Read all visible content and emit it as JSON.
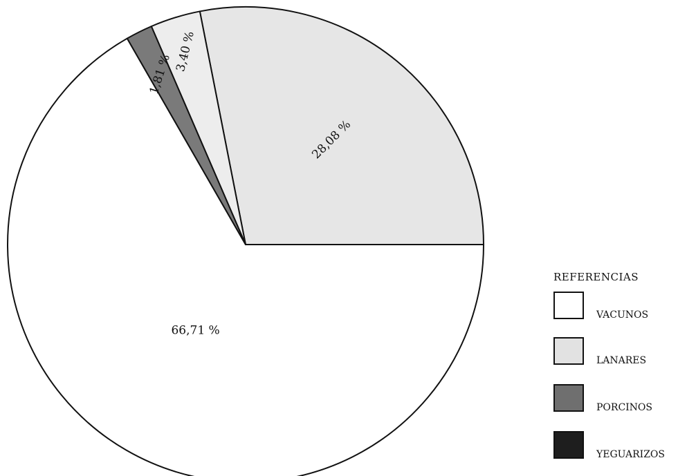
{
  "chart_data": {
    "type": "pie",
    "title": "",
    "categories": [
      "VACUNOS",
      "LANARES",
      "PORCINOS",
      "YEGUARIZOS"
    ],
    "values": [
      66.71,
      28.08,
      1.81,
      3.4
    ],
    "slices": [
      {
        "name": "VACUNOS",
        "value": 66.71,
        "label": "66,71 %",
        "color": "#ffffff"
      },
      {
        "name": "LANARES",
        "value": 28.08,
        "label": "28,08 %",
        "color": "#e6e6e6"
      },
      {
        "name": "YEGUARIZOS",
        "value": 3.4,
        "label": "3,40 %",
        "color": "#ededed"
      },
      {
        "name": "PORCINOS",
        "value": 1.81,
        "label": "1,81 %",
        "color": "#7a7a7a"
      }
    ],
    "legend": {
      "title": "REFERENCIAS",
      "placement": "bottom-right",
      "items": [
        {
          "label": "VACUNOS",
          "color": "#ffffff"
        },
        {
          "label": "LANARES",
          "color": "#e2e2e2"
        },
        {
          "label": "PORCINOS",
          "color": "#6f6f6f"
        },
        {
          "label": "YEGUARIZOS",
          "color": "#1e1e1e"
        }
      ]
    }
  }
}
